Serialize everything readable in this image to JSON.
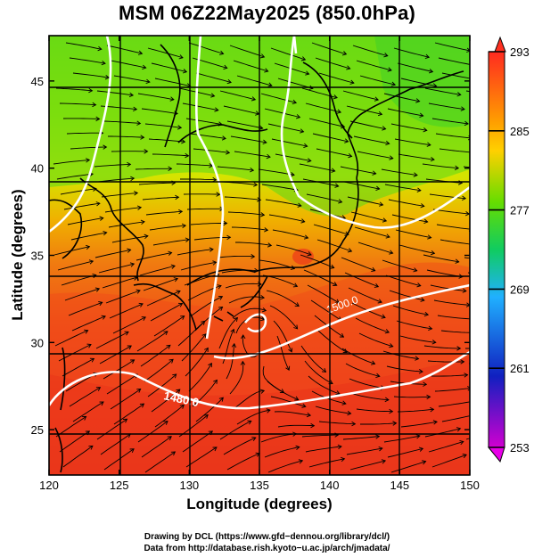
{
  "title": "MSM 06Z22May2025 (850.0hPa)",
  "x_axis": {
    "label": "Longitude (degrees)",
    "range": [
      120,
      150
    ],
    "ticks": [
      120,
      125,
      130,
      135,
      140,
      145,
      150
    ]
  },
  "y_axis": {
    "label": "Latitude  (degrees)",
    "range": [
      22.4,
      47.6
    ],
    "ticks": [
      25,
      30,
      35,
      40,
      45
    ]
  },
  "colorbar": {
    "ticks": [
      293,
      285,
      277,
      269,
      261,
      253
    ],
    "colors": [
      "#ff2a20",
      "#ffc000",
      "#66dd00",
      "#10cc60",
      "#20b0ff",
      "#1020c0",
      "#d000d0"
    ]
  },
  "contours": [
    {
      "label": "1500.0"
    },
    {
      "label": "1480.0"
    }
  ],
  "credits": [
    "Drawing by DCL (https://www.gfd−dennou.org/library/dcl/)",
    "Data from http://database.rish.kyoto−u.ac.jp/arch/jmadata/"
  ],
  "chart_data": {
    "type": "heatmap",
    "title": "MSM 06Z22May2025 (850.0hPa)",
    "xlabel": "Longitude (degrees)",
    "ylabel": "Latitude  (degrees)",
    "xlim": [
      120,
      150
    ],
    "ylim": [
      22.4,
      47.6
    ],
    "color_scale": {
      "min": 253,
      "max": 293,
      "tick_values": [
        253,
        261,
        269,
        277,
        285,
        293
      ]
    },
    "overlays": [
      "streamlines",
      "coastlines",
      "geopotential height contours"
    ],
    "contour_labels": [
      "1500.0",
      "1480.0"
    ],
    "grid": true
  }
}
